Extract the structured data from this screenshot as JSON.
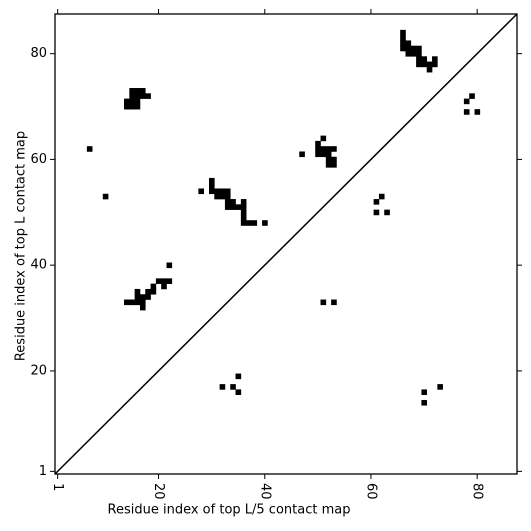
{
  "chart_data": {
    "type": "scatter",
    "marker": "square",
    "color": "#000000",
    "xlabel": "Residue index of top L/5 contact map",
    "ylabel": "Residue index of top L contact map",
    "xlim": [
      0.5,
      87.5
    ],
    "ylim": [
      0.5,
      87.5
    ],
    "xticks": [
      1,
      20,
      40,
      60,
      80
    ],
    "yticks": [
      1,
      20,
      40,
      60,
      80
    ],
    "diagonal": true,
    "x": [
      7,
      10,
      14,
      15,
      16,
      14,
      15,
      16,
      15,
      16,
      17,
      18,
      15,
      16,
      17,
      28,
      30,
      30,
      30,
      31,
      32,
      33,
      31,
      32,
      33,
      33,
      34,
      33,
      34,
      35,
      36,
      36,
      36,
      36,
      36,
      37,
      38,
      40,
      14,
      15,
      16,
      16,
      16,
      17,
      17,
      17,
      18,
      18,
      19,
      19,
      20,
      21,
      21,
      22,
      22,
      47,
      50,
      50,
      50,
      51,
      51,
      51,
      52,
      52,
      53,
      52,
      53,
      52,
      53,
      66,
      66,
      66,
      66,
      67,
      67,
      67,
      68,
      68,
      69,
      69,
      69,
      70,
      69,
      70,
      71,
      71,
      72,
      72,
      51,
      53,
      32,
      34,
      35,
      35,
      61,
      62,
      61,
      63,
      78,
      79,
      78,
      80,
      70,
      70,
      73
    ],
    "y": [
      62,
      53,
      70,
      70,
      70,
      71,
      71,
      71,
      72,
      72,
      72,
      72,
      73,
      73,
      73,
      54,
      55,
      56,
      54,
      54,
      54,
      54,
      53,
      53,
      53,
      52,
      52,
      51,
      51,
      51,
      51,
      52,
      50,
      49,
      48,
      48,
      48,
      48,
      33,
      33,
      33,
      34,
      35,
      34,
      33,
      32,
      34,
      35,
      35,
      36,
      37,
      37,
      36,
      37,
      40,
      61,
      62,
      63,
      61,
      61,
      62,
      64,
      61,
      62,
      62,
      60,
      60,
      59,
      59,
      84,
      83,
      82,
      81,
      82,
      81,
      80,
      81,
      80,
      81,
      80,
      79,
      79,
      78,
      78,
      78,
      77,
      78,
      79,
      33,
      33,
      17,
      17,
      19,
      16,
      52,
      53,
      50,
      50,
      71,
      72,
      69,
      69,
      16,
      14,
      17
    ]
  }
}
